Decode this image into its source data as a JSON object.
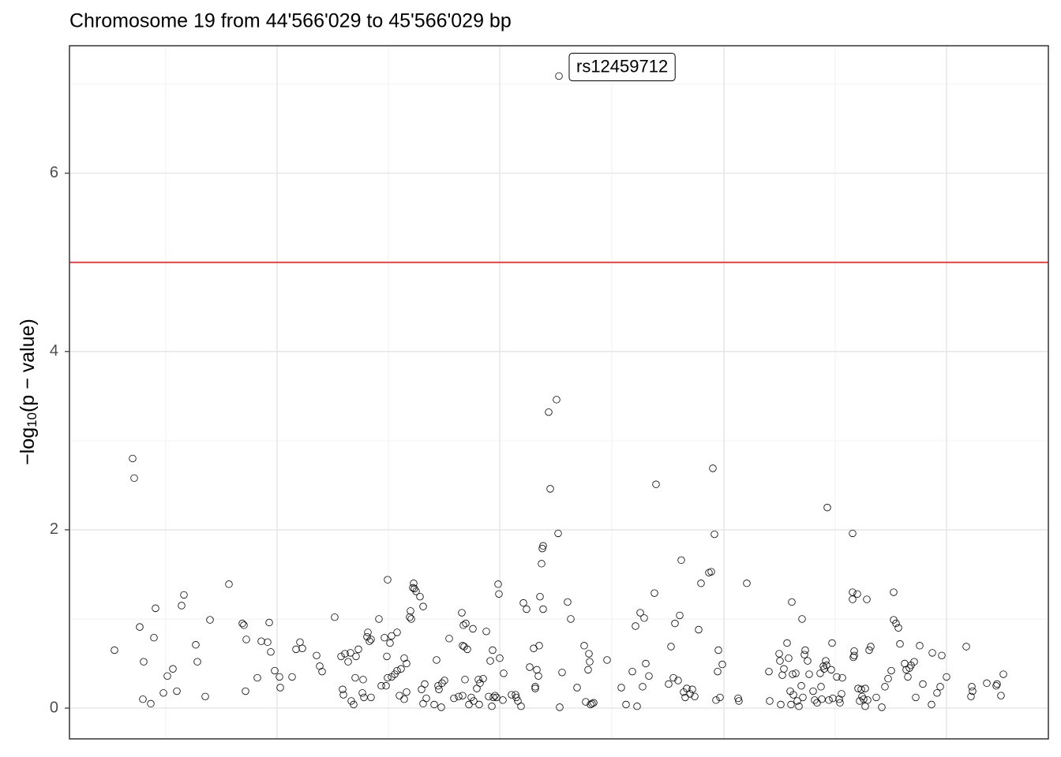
{
  "chart_data": {
    "type": "scatter",
    "title": "Chromosome 19 from 44'566'029 to 45'566'029 bp",
    "ylabel": [
      "−log",
      "10",
      "(p − value)"
    ],
    "xlim": [
      0,
      1240
    ],
    "ylim": [
      -0.345,
      7.43
    ],
    "yticks": [
      0,
      2,
      4,
      6
    ],
    "yminor": [
      1,
      3,
      5,
      7
    ],
    "xgrid_major": [
      263,
      545,
      829,
      1111
    ],
    "xgrid_minor": [
      122,
      404,
      687,
      970
    ],
    "grid": true,
    "threshold": 5,
    "threshold_color": "#d62728",
    "color": "#000000",
    "highlight": {
      "label": "rs12459712",
      "x": 620,
      "y": 7.09
    },
    "x": [
      57,
      80,
      82,
      89,
      93,
      94,
      103,
      107,
      109,
      119,
      124,
      131,
      136,
      142,
      145,
      160,
      162,
      172,
      178,
      202,
      219,
      221,
      223,
      224,
      238,
      243,
      251,
      253,
      255,
      260,
      266,
      267,
      282,
      287,
      292,
      295,
      313,
      317,
      320,
      336,
      344,
      346,
      347,
      349,
      353,
      356,
      357,
      360,
      362,
      363,
      366,
      371,
      372,
      373,
      377,
      378,
      380,
      382,
      382,
      392,
      395,
      399,
      401,
      402,
      403,
      403,
      406,
      408,
      408,
      412,
      415,
      415,
      418,
      420,
      424,
      424,
      427,
      427,
      431,
      432,
      433,
      435,
      436,
      437,
      439,
      444,
      448,
      446,
      448,
      450,
      452,
      462,
      465,
      467,
      468,
      471,
      472,
      475,
      481,
      487,
      493,
      497,
      498,
      498,
      499,
      500,
      501,
      502,
      504,
      506,
      509,
      511,
      512,
      516,
      518,
      519,
      520,
      524,
      528,
      531,
      533,
      535,
      536,
      537,
      539,
      541,
      543,
      544,
      545,
      549,
      550,
      560,
      565,
      566,
      568,
      572,
      575,
      579,
      583,
      588,
      590,
      590,
      592,
      594,
      595,
      596,
      598,
      599,
      600,
      600,
      607,
      609,
      617,
      619,
      621,
      624,
      631,
      635,
      643,
      652,
      654,
      657,
      658,
      659,
      660,
      662,
      664,
      681,
      699,
      705,
      713,
      717,
      719,
      723,
      726,
      728,
      730,
      734,
      741,
      743,
      759,
      762,
      765,
      767,
      771,
      773,
      775,
      778,
      780,
      782,
      786,
      789,
      792,
      797,
      800,
      810,
      813,
      815,
      817,
      819,
      821,
      822,
      824,
      827,
      847,
      848,
      858,
      886,
      887,
      899,
      900,
      901,
      903,
      905,
      909,
      911,
      913,
      914,
      915,
      916,
      917,
      920,
      922,
      924,
      927,
      928,
      929,
      931,
      932,
      935,
      937,
      942,
      944,
      947,
      951,
      952,
      953,
      955,
      956,
      958,
      959,
      960,
      962,
      965,
      966,
      967,
      972,
      975,
      976,
      978,
      979,
      992,
      992,
      992,
      993,
      994,
      994,
      998,
      999,
      1001,
      1003,
      1004,
      1006,
      1008,
      1008,
      1010,
      1011,
      1013,
      1015,
      1022,
      1029,
      1033,
      1037,
      1041,
      1044,
      1044,
      1047,
      1050,
      1052,
      1058,
      1060,
      1062,
      1064,
      1066,
      1070,
      1072,
      1077,
      1081,
      1092,
      1093,
      1099,
      1103,
      1105,
      1111,
      1136,
      1142,
      1143,
      1144,
      1162,
      1174,
      1175,
      1180,
      1183
    ],
    "values": [
      0.65,
      2.8,
      2.58,
      0.91,
      0.1,
      0.52,
      0.05,
      0.79,
      1.12,
      0.17,
      0.36,
      0.44,
      0.19,
      1.15,
      1.27,
      0.71,
      0.52,
      0.13,
      0.99,
      1.39,
      0.95,
      0.93,
      0.19,
      0.77,
      0.34,
      0.75,
      0.74,
      0.96,
      0.63,
      0.42,
      0.35,
      0.23,
      0.35,
      0.66,
      0.74,
      0.67,
      0.59,
      0.47,
      0.41,
      1.02,
      0.58,
      0.21,
      0.15,
      0.61,
      0.52,
      0.62,
      0.08,
      0.04,
      0.34,
      0.58,
      0.66,
      0.17,
      0.32,
      0.12,
      0.8,
      0.85,
      0.75,
      0.77,
      0.12,
      1.0,
      0.25,
      0.79,
      0.25,
      0.58,
      1.44,
      0.34,
      0.73,
      0.81,
      0.35,
      0.38,
      0.42,
      0.85,
      0.14,
      0.44,
      0.56,
      0.1,
      0.18,
      0.5,
      1.02,
      1.09,
      1.0,
      1.35,
      1.4,
      1.34,
      1.31,
      1.25,
      1.14,
      0.21,
      0.05,
      0.27,
      0.11,
      0.04,
      0.54,
      0.25,
      0.21,
      0.01,
      0.28,
      0.31,
      0.78,
      0.11,
      0.13,
      1.07,
      0.14,
      0.7,
      0.93,
      0.69,
      0.32,
      0.95,
      0.66,
      0.04,
      0.12,
      0.89,
      0.08,
      0.22,
      0.32,
      0.04,
      0.28,
      0.33,
      0.86,
      0.13,
      0.53,
      0.02,
      0.65,
      0.12,
      0.14,
      0.12,
      1.39,
      1.28,
      0.56,
      0.09,
      0.39,
      0.15,
      0.15,
      0.12,
      0.08,
      0.02,
      1.18,
      1.11,
      0.46,
      0.67,
      0.22,
      0.24,
      0.43,
      0.36,
      0.7,
      1.25,
      1.62,
      1.79,
      1.82,
      1.11,
      3.32,
      2.46,
      3.46,
      1.96,
      0.01,
      0.4,
      1.19,
      1.0,
      0.23,
      0.7,
      0.07,
      0.43,
      0.61,
      0.52,
      0.04,
      0.05,
      0.06,
      0.54,
      0.23,
      0.04,
      0.41,
      0.92,
      0.02,
      1.07,
      0.24,
      1.01,
      0.5,
      0.36,
      1.29,
      2.51,
      0.27,
      0.69,
      0.34,
      0.95,
      0.31,
      1.04,
      1.66,
      0.18,
      0.12,
      0.22,
      0.16,
      0.21,
      0.13,
      0.88,
      1.4,
      1.52,
      1.53,
      2.69,
      1.95,
      0.09,
      0.41,
      0.65,
      0.12,
      0.49,
      0.11,
      0.08,
      1.4,
      0.41,
      0.08,
      0.61,
      0.53,
      0.04,
      0.37,
      0.44,
      0.73,
      0.56,
      0.19,
      0.04,
      1.19,
      0.38,
      0.15,
      0.39,
      0.08,
      0.02,
      0.25,
      1.0,
      0.12,
      0.6,
      0.65,
      0.53,
      0.38,
      0.19,
      0.09,
      0.06,
      0.39,
      0.24,
      0.1,
      0.47,
      0.44,
      0.53,
      0.48,
      2.25,
      0.09,
      0.43,
      0.73,
      0.11,
      0.35,
      0.1,
      0.06,
      0.16,
      0.34,
      1.96,
      1.3,
      1.22,
      0.57,
      0.59,
      0.64,
      1.28,
      0.22,
      0.08,
      0.21,
      0.13,
      0.1,
      0.22,
      0.02,
      1.22,
      0.09,
      0.65,
      0.69,
      0.12,
      0.01,
      0.24,
      0.33,
      0.42,
      1.3,
      0.99,
      0.95,
      0.9,
      0.72,
      0.5,
      0.43,
      0.35,
      0.45,
      0.48,
      0.52,
      0.12,
      0.7,
      0.27,
      0.04,
      0.62,
      0.17,
      0.24,
      0.59,
      0.35,
      0.69,
      0.13,
      0.24,
      0.19,
      0.28,
      0.25,
      0.27,
      0.14,
      0.38
    ]
  }
}
